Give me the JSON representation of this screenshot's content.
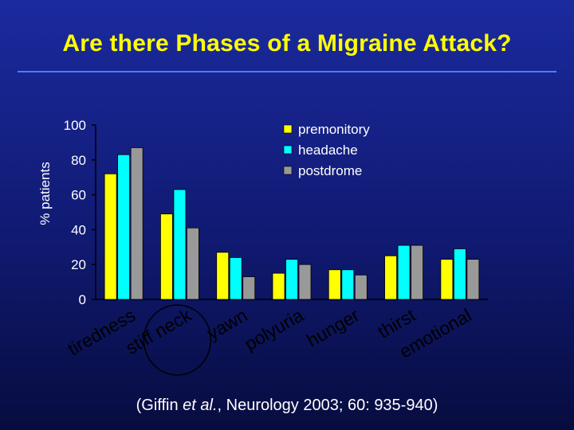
{
  "title": "Are there Phases of a Migraine Attack?",
  "citation": {
    "prefix": "(Giffin ",
    "italic": "et al.",
    "suffix": ", Neurology 2003; 60: 935-940)"
  },
  "colors": {
    "background": "#101a72",
    "title": "#ffff00",
    "rule": "#4f7dff",
    "text": "#ffffff",
    "circle": "#000000"
  },
  "chart_data": {
    "type": "bar",
    "ylabel": "% patients",
    "xlabel": "",
    "ylim": [
      0,
      100
    ],
    "yticks": [
      0,
      20,
      40,
      60,
      80,
      100
    ],
    "grid": false,
    "legend_position": "top-right",
    "categories": [
      "tiredness",
      "stiff neck",
      "yawn",
      "polyuria",
      "hunger",
      "thirst",
      "emotional"
    ],
    "highlighted_category": "stiff neck",
    "series": [
      {
        "name": "premonitory",
        "color": "#ffff00",
        "values": [
          72,
          49,
          27,
          15,
          17,
          25,
          23
        ]
      },
      {
        "name": "headache",
        "color": "#00ffff",
        "values": [
          83,
          63,
          24,
          23,
          17,
          31,
          29
        ]
      },
      {
        "name": "postdrome",
        "color": "#999999",
        "values": [
          87,
          41,
          13,
          20,
          14,
          31,
          23
        ]
      }
    ]
  }
}
